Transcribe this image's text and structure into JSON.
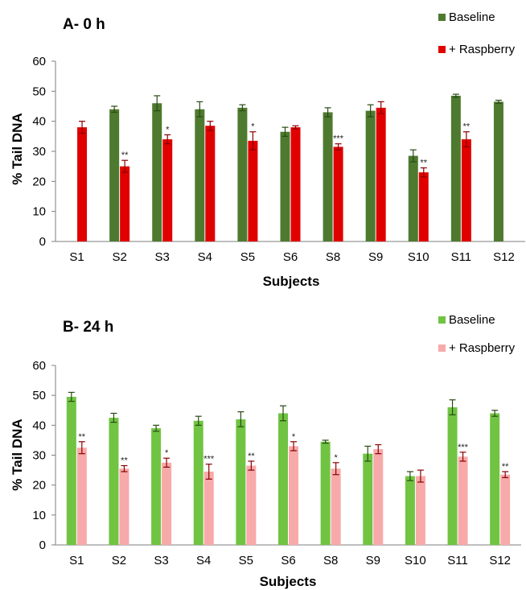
{
  "chart_data": [
    {
      "type": "bar",
      "title": "A- 0 h",
      "xlabel": "Subjects",
      "ylabel": "% Tail DNA",
      "ylim": [
        0,
        60
      ],
      "yticks": [
        0,
        10,
        20,
        30,
        40,
        50,
        60
      ],
      "grid": false,
      "legend_position": "top-right",
      "categories": [
        "S1",
        "S2",
        "S3",
        "S4",
        "S5",
        "S6",
        "S8",
        "S9",
        "S10",
        "S11",
        "S12"
      ],
      "series": [
        {
          "name": "Baseline",
          "color": "#4e7a2f",
          "values": [
            null,
            44,
            46,
            44,
            44.5,
            36.5,
            43,
            43.5,
            28.5,
            48.5,
            46.5
          ],
          "errors": [
            null,
            1,
            2.5,
            2.5,
            1,
            1.5,
            1.5,
            2,
            2,
            0.5,
            0.5
          ]
        },
        {
          "name": "+ Raspberry",
          "color": "#e00000",
          "values": [
            38,
            25,
            34,
            38.5,
            33.5,
            38,
            31.5,
            44.5,
            23,
            34,
            null
          ],
          "errors": [
            2,
            2,
            1.5,
            1.5,
            3,
            0.5,
            1,
            2,
            1.5,
            2.5,
            null
          ],
          "significance": [
            "",
            "**",
            "*",
            "",
            "*",
            "",
            "***",
            "",
            "**",
            "**",
            ""
          ]
        }
      ]
    },
    {
      "type": "bar",
      "title": "B- 24 h",
      "xlabel": "Subjects",
      "ylabel": "% Tail DNA",
      "ylim": [
        0,
        60
      ],
      "yticks": [
        0,
        10,
        20,
        30,
        40,
        50,
        60
      ],
      "grid": false,
      "legend_position": "top-right",
      "categories": [
        "S1",
        "S2",
        "S3",
        "S4",
        "S5",
        "S6",
        "S8",
        "S9",
        "S10",
        "S11",
        "S12"
      ],
      "series": [
        {
          "name": "Baseline",
          "color": "#70c442",
          "values": [
            49.5,
            42.5,
            39,
            41.5,
            42,
            44,
            34.5,
            30.5,
            23,
            46,
            44
          ],
          "errors": [
            1.5,
            1.5,
            1,
            1.5,
            2.5,
            2.5,
            0.5,
            2.5,
            1.5,
            2.5,
            1
          ]
        },
        {
          "name": "+ Raspberry",
          "color": "#f8a9a9",
          "values": [
            32.5,
            25.5,
            27.5,
            24.5,
            26.5,
            33,
            25.5,
            32,
            23,
            29.5,
            23.5
          ],
          "errors": [
            2,
            1,
            1.5,
            2.5,
            1.5,
            1.5,
            2,
            1.5,
            2,
            1.5,
            1
          ],
          "significance": [
            "**",
            "**",
            "*",
            "***",
            "**",
            "*",
            "*",
            "",
            "",
            "***",
            "**"
          ]
        }
      ]
    }
  ]
}
